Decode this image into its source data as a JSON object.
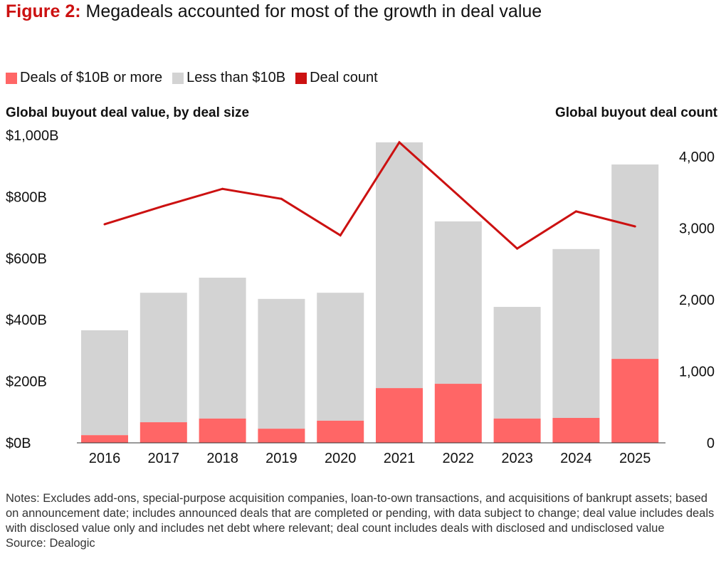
{
  "title": {
    "label": "Figure 2:",
    "text": "Megadeals accounted for most of the growth in deal value"
  },
  "notes": "Notes: Excludes add-ons, special-purpose acquisition companies, loan-to-own transactions, and acquisitions of bankrupt assets; based on announcement date; includes announced deals that are completed or pending, with data subject to change; deal value includes deals with disclosed value only and includes net debt where relevant; deal count includes deals with disclosed and undisclosed value",
  "source": "Source: Dealogic",
  "chart_data": {
    "type": "bar",
    "stacked": true,
    "categories": [
      "2016",
      "2017",
      "2018",
      "2019",
      "2020",
      "2021",
      "2022",
      "2023",
      "2024",
      "2025"
    ],
    "ylabel": "Global buyout deal value, by deal size",
    "y2label": "Global buyout deal count",
    "ylim": [
      0,
      1000
    ],
    "yticks": [
      "$0B",
      "$200B",
      "$400B",
      "$600B",
      "$800B",
      "$1,000B"
    ],
    "y2lim": [
      0,
      4300
    ],
    "y2ticks": [
      "0",
      "1,000",
      "2,000",
      "3,000",
      "4,000"
    ],
    "legend_position": "top-left",
    "series": [
      {
        "name": "Deals of $10B or more",
        "type": "bar",
        "color": "#ff6666",
        "values": [
          25,
          67,
          79,
          46,
          72,
          178,
          192,
          79,
          81,
          273
        ]
      },
      {
        "name": "Less than $10B",
        "type": "bar",
        "color": "#d3d3d3",
        "values": [
          341,
          421,
          458,
          422,
          416,
          799,
          528,
          363,
          549,
          632
        ]
      },
      {
        "name": "Deal count",
        "type": "line",
        "axis": "right",
        "color": "#cc1111",
        "values": [
          3055,
          3310,
          3550,
          3410,
          2900,
          4200,
          3460,
          2715,
          3235,
          3025
        ]
      }
    ]
  }
}
